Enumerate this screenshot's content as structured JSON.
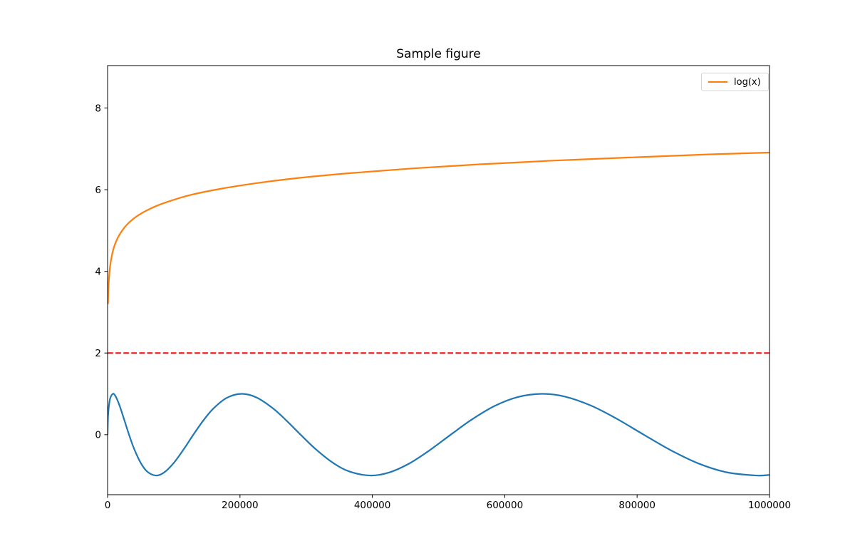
{
  "figure": {
    "background": "#ffffff"
  },
  "chart_data": {
    "type": "line",
    "title": "Sample figure",
    "xlabel": "",
    "ylabel": "",
    "grid": false,
    "xlim": [
      0,
      1000000
    ],
    "ylim": [
      -1.47,
      9.04
    ],
    "xticks": {
      "values": [
        0,
        200000,
        400000,
        600000,
        800000,
        1000000
      ],
      "labels": [
        "0",
        "200000",
        "400000",
        "600000",
        "800000",
        "1000000"
      ]
    },
    "yticks": {
      "values": [
        0,
        2,
        4,
        6,
        8
      ],
      "labels": [
        "0",
        "2",
        "4",
        "6",
        "8"
      ]
    },
    "axis_color": "#000000",
    "legend": {
      "visible": true,
      "position": "upper right",
      "entries": [
        "log(x)"
      ],
      "swatch_color": "#ff7f0e"
    },
    "series": [
      {
        "id": "sine-curve",
        "legend_label": null,
        "color": "#1f77b4",
        "line_style": "solid",
        "line_width": 2.2,
        "points": [
          [
            0,
            0
          ],
          [
            500,
            0.381
          ],
          [
            1000,
            0.525
          ],
          [
            2000,
            0.703
          ],
          [
            4000,
            0.893
          ],
          [
            8100,
            1.0
          ],
          [
            12000,
            0.942
          ],
          [
            18000,
            0.717
          ],
          [
            25000,
            0.373
          ],
          [
            32400,
            0
          ],
          [
            40000,
            -0.342
          ],
          [
            50000,
            -0.69
          ],
          [
            60000,
            -0.906
          ],
          [
            72900,
            -1.0
          ],
          [
            85000,
            -0.93
          ],
          [
            100000,
            -0.692
          ],
          [
            115000,
            -0.357
          ],
          [
            129600,
            0
          ],
          [
            145000,
            0.355
          ],
          [
            160000,
            0.643
          ],
          [
            180000,
            0.901
          ],
          [
            202500,
            1.0
          ],
          [
            225000,
            0.911
          ],
          [
            250000,
            0.643
          ],
          [
            270000,
            0.349
          ],
          [
            291600,
            0
          ],
          [
            315000,
            -0.363
          ],
          [
            340000,
            -0.683
          ],
          [
            365000,
            -0.9
          ],
          [
            396900,
            -1.0
          ],
          [
            425000,
            -0.928
          ],
          [
            455000,
            -0.713
          ],
          [
            485000,
            -0.4
          ],
          [
            518400,
            0
          ],
          [
            550000,
            0.368
          ],
          [
            585000,
            0.705
          ],
          [
            620000,
            0.923
          ],
          [
            656100,
            1.0
          ],
          [
            690000,
            0.936
          ],
          [
            730000,
            0.714
          ],
          [
            768000,
            0.401
          ],
          [
            810000,
            0
          ],
          [
            850000,
            -0.374
          ],
          [
            893000,
            -0.707
          ],
          [
            935000,
            -0.92
          ],
          [
            980100,
            -1.0
          ],
          [
            1000000,
            -0.985
          ]
        ]
      },
      {
        "id": "log-curve",
        "legend_label": "log(x)",
        "color": "#ff7f0e",
        "line_style": "solid",
        "line_width": 2.2,
        "points": [
          [
            600,
            3.2
          ],
          [
            1000,
            3.45
          ],
          [
            1500,
            3.66
          ],
          [
            2500,
            3.91
          ],
          [
            4000,
            4.15
          ],
          [
            6500,
            4.39
          ],
          [
            10000,
            4.61
          ],
          [
            15000,
            4.81
          ],
          [
            22000,
            5.0
          ],
          [
            32000,
            5.19
          ],
          [
            45000,
            5.36
          ],
          [
            65000,
            5.54
          ],
          [
            90000,
            5.7
          ],
          [
            125000,
            5.87
          ],
          [
            170000,
            6.02
          ],
          [
            225000,
            6.16
          ],
          [
            290000,
            6.29
          ],
          [
            370000,
            6.41
          ],
          [
            460000,
            6.52
          ],
          [
            560000,
            6.62
          ],
          [
            670000,
            6.71
          ],
          [
            790000,
            6.79
          ],
          [
            900000,
            6.86
          ],
          [
            1000000,
            6.91
          ]
        ]
      },
      {
        "id": "threshold-line",
        "legend_label": null,
        "color": "#ff0000",
        "line_style": "dashed",
        "line_width": 2.0,
        "points": [
          [
            0,
            2
          ],
          [
            1000000,
            2
          ]
        ]
      }
    ]
  }
}
